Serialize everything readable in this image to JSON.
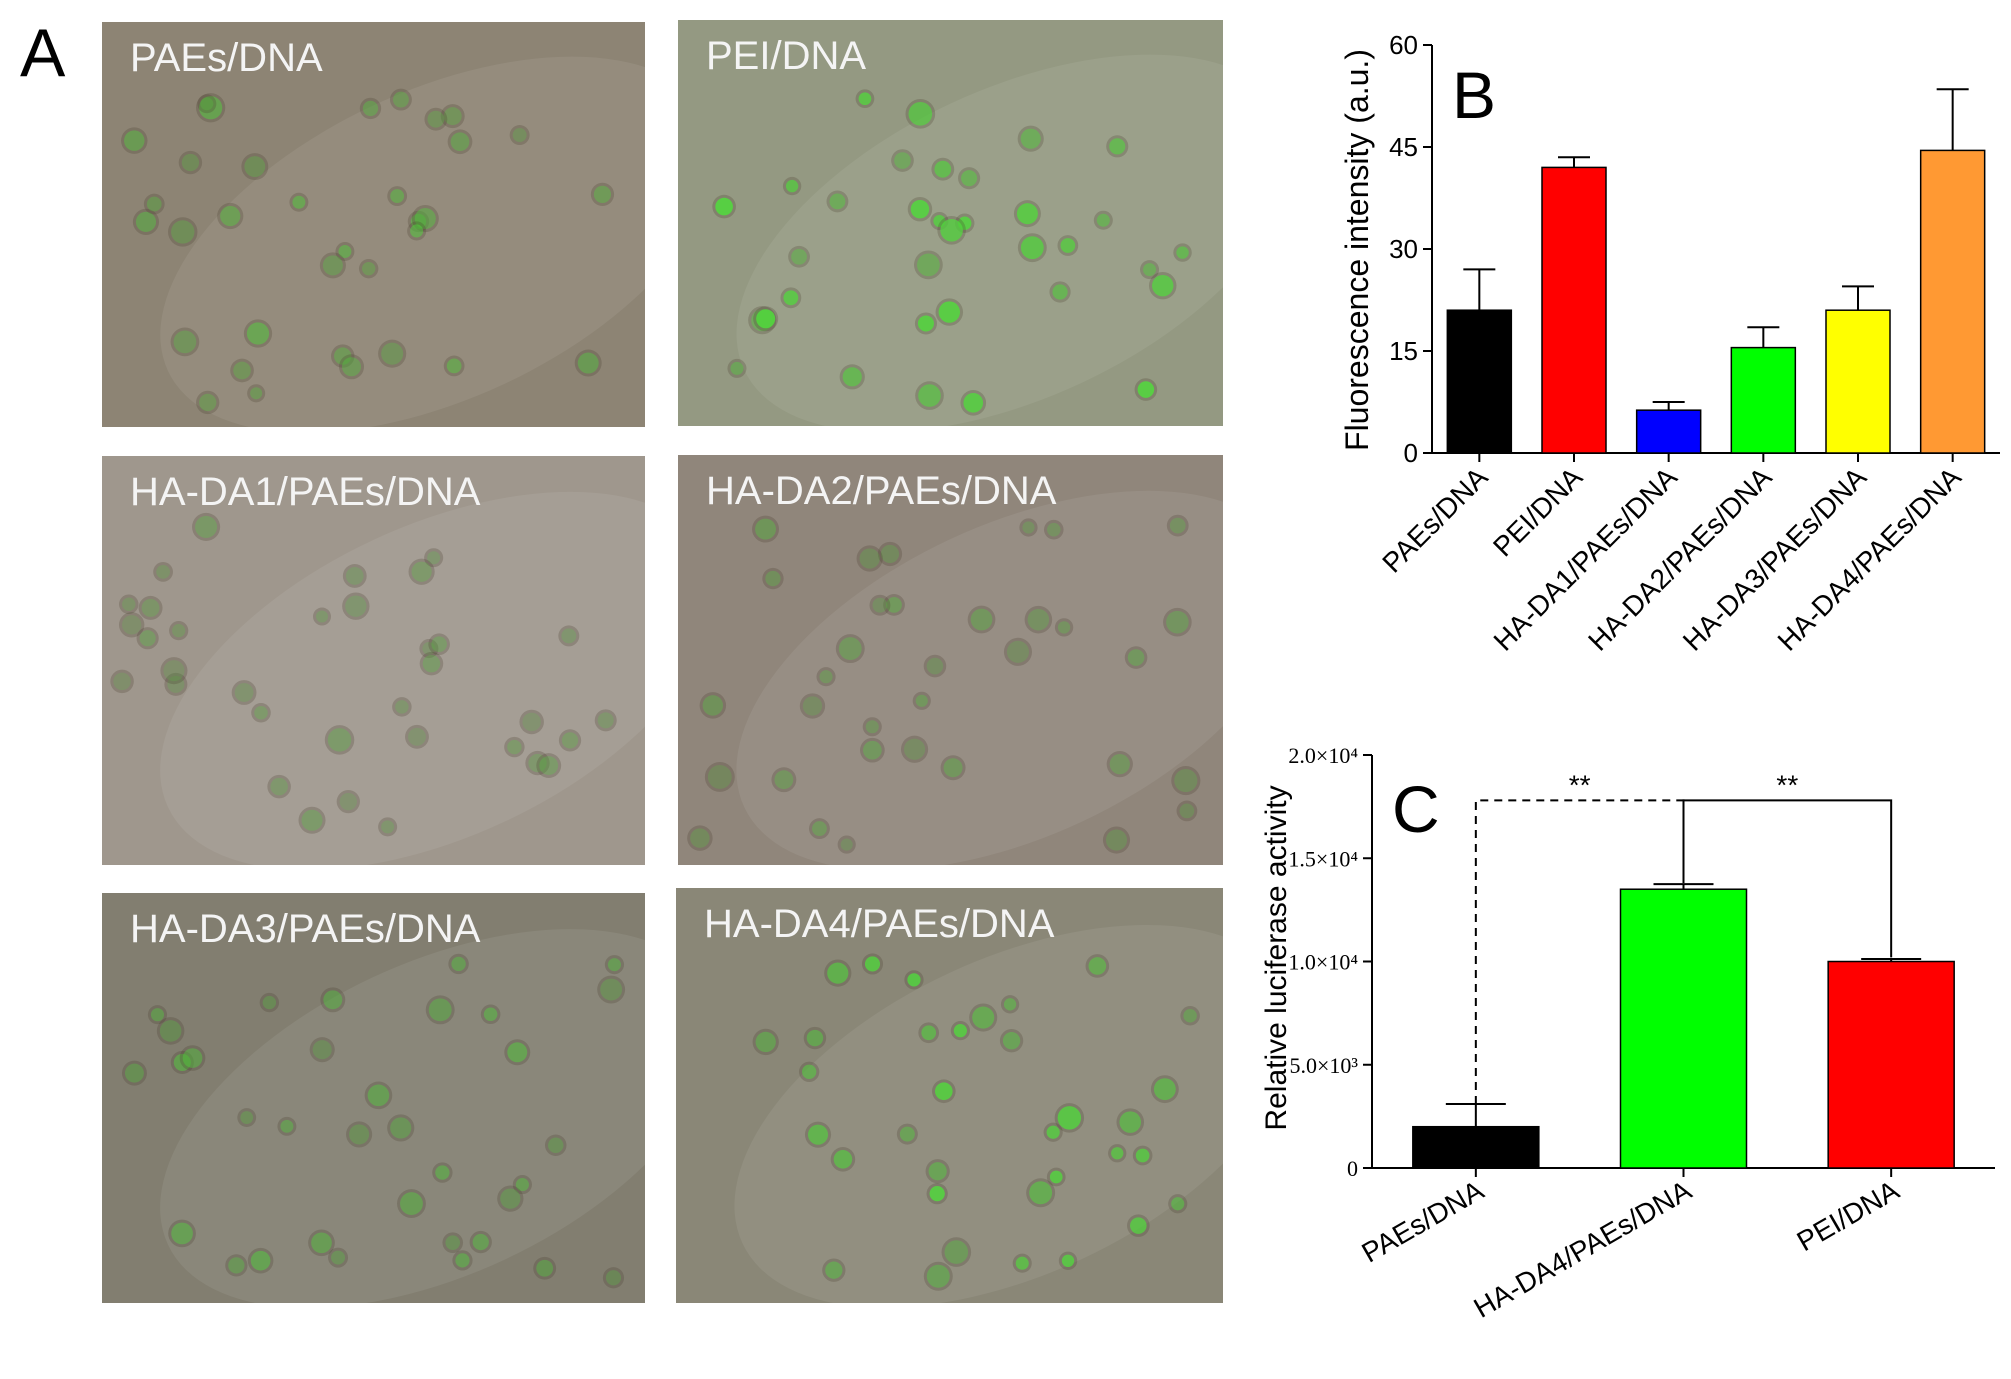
{
  "panel_A": {
    "letter": "A",
    "images": [
      {
        "label": "PAEs/DNA",
        "bg": "#867d6c",
        "green_intensity": 0.45
      },
      {
        "label": "PEI/DNA",
        "bg": "#8e937b",
        "green_intensity": 0.95
      },
      {
        "label": "HA-DA1/PAEs/DNA",
        "bg": "#9a9186",
        "green_intensity": 0.2
      },
      {
        "label": "HA-DA2/PAEs/DNA",
        "bg": "#8a7f73",
        "green_intensity": 0.3
      },
      {
        "label": "HA-DA3/PAEs/DNA",
        "bg": "#7b7668",
        "green_intensity": 0.45
      },
      {
        "label": "HA-DA4/PAEs/DNA",
        "bg": "#83806f",
        "green_intensity": 0.9
      }
    ]
  },
  "chart_data": [
    {
      "panel": "B",
      "type": "bar",
      "ylabel": "Fluorescence intensity (a.u.)",
      "ylim": [
        0,
        60
      ],
      "yticks": [
        "0",
        "15",
        "30",
        "45",
        "60"
      ],
      "categories": [
        "PAEs/DNA",
        "PEI/DNA",
        "HA-DA1/PAEs/DNA",
        "HA-DA2/PAEs/DNA",
        "HA-DA3/PAEs/DNA",
        "HA-DA4/PAEs/DNA"
      ],
      "values": [
        21,
        42,
        6.3,
        15.5,
        21,
        44.5
      ],
      "errors": [
        6,
        1.5,
        1.2,
        3,
        3.5,
        9
      ],
      "colors": [
        "#000000",
        "#ff0000",
        "#0000ff",
        "#00ff00",
        "#ffff00",
        "#ff9933"
      ]
    },
    {
      "panel": "C",
      "type": "bar",
      "ylabel": "Relative luciferase activity",
      "ylim": [
        0,
        20000
      ],
      "yticks": [
        "0",
        "5.0×10³",
        "1.0×10⁴",
        "1.5×10⁴",
        "2.0×10⁴"
      ],
      "categories": [
        "PAEs/DNA",
        "HA-DA4/PAEs/DNA",
        "PEI/DNA"
      ],
      "values": [
        2000,
        13500,
        10000
      ],
      "errors": [
        1100,
        250,
        120
      ],
      "colors": [
        "#000000",
        "#00ff00",
        "#ff0000"
      ],
      "annotations": [
        "**",
        "**"
      ]
    }
  ]
}
